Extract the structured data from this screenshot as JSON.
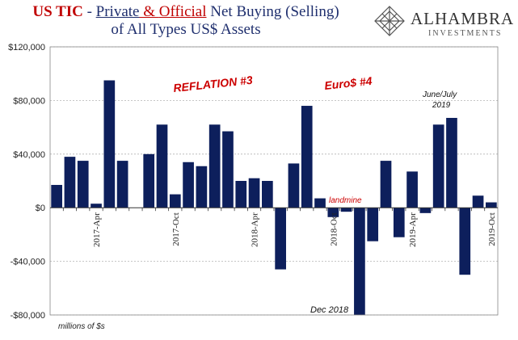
{
  "title": {
    "prefix": "US TIC",
    "dash": " - ",
    "part1": "Private",
    "amp": " & ",
    "part2": "Official",
    "part3": " Net Buying (Selling)",
    "line2": "of All Types US$ Assets"
  },
  "logo": {
    "name": "ALHAMBRA",
    "sub": "INVESTMENTS"
  },
  "colors": {
    "bar": "#0d1f5c",
    "annotation_red": "#cc0000",
    "title_red": "#c00000",
    "title_navy": "#1f2f6e",
    "grid": "#b4b4b4"
  },
  "chart_data": {
    "type": "bar",
    "unit_note": "millions of $s",
    "ylim": [
      -80000,
      120000
    ],
    "yticks": [
      {
        "value": 120000,
        "label": "$120,000"
      },
      {
        "value": 80000,
        "label": "$80,000"
      },
      {
        "value": 40000,
        "label": "$40,000"
      },
      {
        "value": 0,
        "label": "$0"
      },
      {
        "value": -40000,
        "label": "-$40,000"
      },
      {
        "value": -80000,
        "label": "-$80,000"
      }
    ],
    "grid": true,
    "categories": [
      "2017-Jan",
      "2017-Feb",
      "2017-Mar",
      "2017-Apr",
      "2017-May",
      "2017-Jun",
      "2017-Jul",
      "2017-Aug",
      "2017-Sep",
      "2017-Oct",
      "2017-Nov",
      "2017-Dec",
      "2018-Jan",
      "2018-Feb",
      "2018-Mar",
      "2018-Apr",
      "2018-May",
      "2018-Jun",
      "2018-Jul",
      "2018-Aug",
      "2018-Sep",
      "2018-Oct",
      "2018-Nov",
      "2018-Dec",
      "2019-Jan",
      "2019-Feb",
      "2019-Mar",
      "2019-Apr",
      "2019-May",
      "2019-Jun",
      "2019-Jul",
      "2019-Aug",
      "2019-Sep",
      "2019-Oct"
    ],
    "values": [
      17000,
      38000,
      35000,
      3000,
      95000,
      35000,
      null,
      40000,
      62000,
      10000,
      34000,
      31000,
      62000,
      57000,
      20000,
      22000,
      20000,
      -46000,
      33000,
      76000,
      7000,
      -7000,
      -3000,
      -80000,
      -25000,
      35000,
      -22000,
      27000,
      -4000,
      62000,
      67000,
      -50000,
      9000,
      4000
    ],
    "xtick_labels": [
      {
        "index": 3,
        "label": "2017-Apr"
      },
      {
        "index": 9,
        "label": "2017-Oct"
      },
      {
        "index": 15,
        "label": "2018-Apr"
      },
      {
        "index": 21,
        "label": "2018-Oct"
      },
      {
        "index": 27,
        "label": "2019-Apr"
      },
      {
        "index": 33,
        "label": "2019-Oct"
      }
    ],
    "annotations": [
      {
        "text": "REFLATION #3",
        "color": "red"
      },
      {
        "text": "Euro$ #4",
        "color": "red"
      },
      {
        "text": "landmine",
        "color": "red"
      },
      {
        "text": "Dec 2018",
        "color": "black"
      },
      {
        "text": "June/July",
        "color": "black"
      },
      {
        "text": "2019",
        "color": "black"
      }
    ]
  }
}
